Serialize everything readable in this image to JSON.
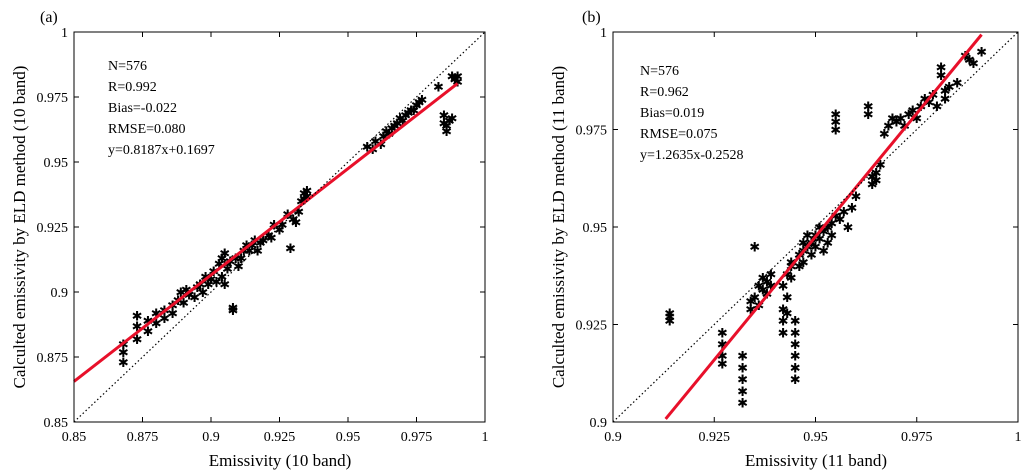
{
  "panels": [
    {
      "label": "(a)",
      "stats": [
        "N=576",
        "R=0.992",
        "Bias=-0.022",
        "RMSE=0.080",
        "y=0.8187x+0.1697"
      ],
      "chart_data": {
        "type": "scatter",
        "xlabel": "Emissivity (10 band)",
        "ylabel": "Calculted emissivity by ELD method (10 band)",
        "xlim": [
          0.85,
          1
        ],
        "ylim": [
          0.85,
          1
        ],
        "xticks": [
          "0.85",
          "0.875",
          "0.9",
          "0.925",
          "0.95",
          "0.975",
          "1"
        ],
        "yticks": [
          "0.85",
          "0.875",
          "0.9",
          "0.925",
          "0.95",
          "0.975",
          "1"
        ],
        "series": [
          {
            "name": "samples",
            "marker": "asterisk",
            "color": "#1f2ee0",
            "x": [
              0.868,
              0.868,
              0.868,
              0.873,
              0.873,
              0.873,
              0.877,
              0.877,
              0.88,
              0.88,
              0.883,
              0.883,
              0.886,
              0.886,
              0.888,
              0.889,
              0.89,
              0.891,
              0.892,
              0.894,
              0.895,
              0.896,
              0.897,
              0.898,
              0.899,
              0.9,
              0.901,
              0.902,
              0.903,
              0.904,
              0.904,
              0.905,
              0.905,
              0.906,
              0.906,
              0.907,
              0.908,
              0.908,
              0.909,
              0.91,
              0.911,
              0.912,
              0.913,
              0.914,
              0.915,
              0.916,
              0.917,
              0.918,
              0.919,
              0.921,
              0.922,
              0.923,
              0.925,
              0.926,
              0.928,
              0.929,
              0.93,
              0.931,
              0.932,
              0.933,
              0.934,
              0.934,
              0.935,
              0.935,
              0.957,
              0.959,
              0.96,
              0.962,
              0.963,
              0.964,
              0.965,
              0.966,
              0.967,
              0.968,
              0.969,
              0.97,
              0.971,
              0.972,
              0.973,
              0.974,
              0.975,
              0.976,
              0.977,
              0.983,
              0.985,
              0.985,
              0.986,
              0.986,
              0.987,
              0.988,
              0.988,
              0.989,
              0.99,
              0.99
            ],
            "y": [
              0.873,
              0.877,
              0.88,
              0.882,
              0.887,
              0.891,
              0.885,
              0.889,
              0.888,
              0.892,
              0.89,
              0.893,
              0.892,
              0.895,
              0.897,
              0.9,
              0.896,
              0.901,
              0.899,
              0.898,
              0.902,
              0.903,
              0.9,
              0.906,
              0.903,
              0.905,
              0.908,
              0.904,
              0.911,
              0.913,
              0.906,
              0.915,
              0.903,
              0.909,
              0.911,
              0.912,
              0.894,
              0.893,
              0.913,
              0.91,
              0.913,
              0.916,
              0.918,
              0.916,
              0.918,
              0.92,
              0.916,
              0.919,
              0.92,
              0.922,
              0.921,
              0.926,
              0.924,
              0.926,
              0.93,
              0.917,
              0.928,
              0.927,
              0.931,
              0.935,
              0.936,
              0.938,
              0.937,
              0.939,
              0.956,
              0.955,
              0.958,
              0.957,
              0.96,
              0.962,
              0.961,
              0.963,
              0.964,
              0.965,
              0.967,
              0.966,
              0.968,
              0.969,
              0.97,
              0.97,
              0.972,
              0.973,
              0.974,
              0.979,
              0.968,
              0.965,
              0.964,
              0.962,
              0.966,
              0.967,
              0.983,
              0.982,
              0.981,
              0.983
            ]
          },
          {
            "name": "fit",
            "kind": "line",
            "color": "#e8102a",
            "slope": 0.8187,
            "intercept": 0.1697,
            "x_range": [
              0.85,
              0.99
            ]
          },
          {
            "name": "1:1",
            "kind": "dotted-line",
            "color": "#000000",
            "x": [
              0.85,
              1
            ],
            "y": [
              0.85,
              1
            ]
          }
        ]
      }
    },
    {
      "label": "(b)",
      "stats": [
        "N=576",
        "R=0.962",
        "Bias=0.019",
        "RMSE=0.075",
        "y=1.2635x-0.2528"
      ],
      "chart_data": {
        "type": "scatter",
        "xlabel": "Emissivity (11 band)",
        "ylabel": "Calculted emissivity by ELD method (11 band)",
        "xlim": [
          0.9,
          1
        ],
        "ylim": [
          0.9,
          1
        ],
        "xticks": [
          "0.9",
          "0.925",
          "0.95",
          "0.975",
          "1"
        ],
        "yticks": [
          "0.9",
          "0.925",
          "0.95",
          "0.975",
          "1"
        ],
        "series": [
          {
            "name": "samples",
            "marker": "asterisk",
            "color": "#1f2ee0",
            "x": [
              0.914,
              0.914,
              0.914,
              0.927,
              0.927,
              0.927,
              0.927,
              0.932,
              0.932,
              0.932,
              0.932,
              0.932,
              0.934,
              0.934,
              0.935,
              0.935,
              0.936,
              0.936,
              0.937,
              0.937,
              0.938,
              0.938,
              0.939,
              0.939,
              0.942,
              0.942,
              0.942,
              0.942,
              0.943,
              0.943,
              0.943,
              0.944,
              0.944,
              0.944,
              0.945,
              0.945,
              0.945,
              0.945,
              0.945,
              0.945,
              0.946,
              0.946,
              0.947,
              0.947,
              0.947,
              0.948,
              0.948,
              0.949,
              0.949,
              0.95,
              0.95,
              0.951,
              0.951,
              0.952,
              0.952,
              0.953,
              0.953,
              0.954,
              0.954,
              0.955,
              0.955,
              0.955,
              0.955,
              0.956,
              0.957,
              0.958,
              0.959,
              0.96,
              0.963,
              0.963,
              0.964,
              0.964,
              0.965,
              0.965,
              0.966,
              0.967,
              0.968,
              0.969,
              0.97,
              0.971,
              0.972,
              0.973,
              0.974,
              0.975,
              0.976,
              0.977,
              0.978,
              0.979,
              0.98,
              0.981,
              0.981,
              0.982,
              0.982,
              0.983,
              0.985,
              0.987,
              0.988,
              0.989,
              0.991
            ],
            "y": [
              0.927,
              0.928,
              0.926,
              0.923,
              0.92,
              0.917,
              0.915,
              0.917,
              0.914,
              0.911,
              0.908,
              0.905,
              0.929,
              0.931,
              0.945,
              0.932,
              0.935,
              0.93,
              0.934,
              0.937,
              0.936,
              0.933,
              0.935,
              0.938,
              0.929,
              0.926,
              0.923,
              0.935,
              0.938,
              0.932,
              0.928,
              0.94,
              0.937,
              0.941,
              0.926,
              0.923,
              0.92,
              0.917,
              0.914,
              0.911,
              0.94,
              0.943,
              0.941,
              0.946,
              0.944,
              0.945,
              0.948,
              0.943,
              0.946,
              0.945,
              0.948,
              0.947,
              0.95,
              0.949,
              0.944,
              0.95,
              0.946,
              0.951,
              0.948,
              0.977,
              0.975,
              0.979,
              0.953,
              0.952,
              0.954,
              0.95,
              0.955,
              0.958,
              0.981,
              0.979,
              0.963,
              0.961,
              0.962,
              0.964,
              0.966,
              0.974,
              0.976,
              0.978,
              0.977,
              0.978,
              0.976,
              0.979,
              0.98,
              0.978,
              0.981,
              0.983,
              0.982,
              0.984,
              0.981,
              0.991,
              0.989,
              0.985,
              0.983,
              0.986,
              0.987,
              0.994,
              0.993,
              0.992,
              0.995
            ]
          },
          {
            "name": "fit",
            "kind": "line",
            "color": "#e8102a",
            "slope": 1.2635,
            "intercept": -0.2528,
            "x_range": [
              0.913,
              0.991
            ]
          },
          {
            "name": "1:1",
            "kind": "dotted-line",
            "color": "#000000",
            "x": [
              0.9,
              1
            ],
            "y": [
              0.9,
              1
            ]
          }
        ]
      }
    }
  ]
}
